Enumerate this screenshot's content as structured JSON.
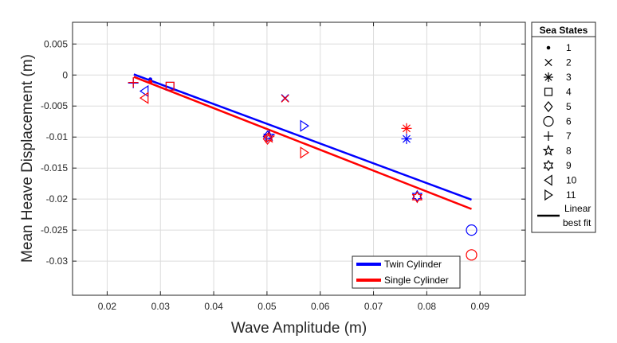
{
  "chart_data": {
    "type": "scatter",
    "xlabel": "Wave Amplitude (m)",
    "ylabel": "Mean Heave Displacement (m)",
    "xlim": [
      0.0135,
      0.0985
    ],
    "ylim": [
      -0.0355,
      0.0085
    ],
    "xticks": [
      0.02,
      0.03,
      0.04,
      0.05,
      0.06,
      0.07,
      0.08,
      0.09
    ],
    "xtick_labels": [
      "0.02",
      "0.03",
      "0.04",
      "0.05",
      "0.06",
      "0.07",
      "0.08",
      "0.09"
    ],
    "yticks": [
      0.005,
      0,
      -0.005,
      -0.01,
      -0.015,
      -0.02,
      -0.025,
      -0.03
    ],
    "ytick_labels": [
      "0.005",
      "0",
      "-0.005",
      "-0.01",
      "-0.015",
      "-0.02",
      "-0.025",
      "-0.03"
    ],
    "grid": true,
    "legend_position": "bottom-right",
    "series": [
      {
        "name": "Twin Cylinder",
        "color": "#0000ff",
        "points": [
          {
            "state": 1,
            "x": 0.0281,
            "y": -0.0007
          },
          {
            "state": 2,
            "x": 0.0534,
            "y": -0.0037
          },
          {
            "state": 3,
            "x": 0.0762,
            "y": -0.0103
          },
          {
            "state": 4,
            "x": 0.0318,
            "y": -0.0018
          },
          {
            "state": 5,
            "x": 0.0501,
            "y": -0.0099
          },
          {
            "state": 6,
            "x": 0.0884,
            "y": -0.025
          },
          {
            "state": 7,
            "x": 0.0249,
            "y": -0.0013
          },
          {
            "state": 8,
            "x": 0.0504,
            "y": -0.0098
          },
          {
            "state": 9,
            "x": 0.0782,
            "y": -0.0195
          },
          {
            "state": 10,
            "x": 0.027,
            "y": -0.0026
          },
          {
            "state": 11,
            "x": 0.057,
            "y": -0.0082
          }
        ],
        "fit": {
          "x": [
            0.025,
            0.0884
          ],
          "y": [
            0.0001,
            -0.0201
          ]
        }
      },
      {
        "name": "Single Cylinder",
        "color": "#ff0000",
        "points": [
          {
            "state": 1,
            "x": 0.0281,
            "y": -0.0011
          },
          {
            "state": 2,
            "x": 0.0534,
            "y": -0.0038
          },
          {
            "state": 3,
            "x": 0.0762,
            "y": -0.0086
          },
          {
            "state": 4,
            "x": 0.0318,
            "y": -0.0018
          },
          {
            "state": 5,
            "x": 0.0501,
            "y": -0.0103
          },
          {
            "state": 6,
            "x": 0.0884,
            "y": -0.029
          },
          {
            "state": 7,
            "x": 0.0249,
            "y": -0.0012
          },
          {
            "state": 8,
            "x": 0.0504,
            "y": -0.0101
          },
          {
            "state": 9,
            "x": 0.0782,
            "y": -0.0197
          },
          {
            "state": 10,
            "x": 0.027,
            "y": -0.0037
          },
          {
            "state": 11,
            "x": 0.057,
            "y": -0.0125
          }
        ],
        "fit": {
          "x": [
            0.025,
            0.0884
          ],
          "y": [
            -0.0003,
            -0.0216
          ]
        }
      }
    ],
    "fit_legend": {
      "items": [
        {
          "label": "Twin Cylinder",
          "color": "#0000ff"
        },
        {
          "label": "Single Cylinder",
          "color": "#ff0000"
        }
      ]
    },
    "marker_legend": {
      "title": "Sea States",
      "items": [
        {
          "label": "1",
          "marker": "dot"
        },
        {
          "label": "2",
          "marker": "x"
        },
        {
          "label": "3",
          "marker": "asterisk"
        },
        {
          "label": "4",
          "marker": "square"
        },
        {
          "label": "5",
          "marker": "diamond"
        },
        {
          "label": "6",
          "marker": "circle"
        },
        {
          "label": "7",
          "marker": "plus"
        },
        {
          "label": "8",
          "marker": "pentagram"
        },
        {
          "label": "9",
          "marker": "hexagram"
        },
        {
          "label": "10",
          "marker": "triangle-left"
        },
        {
          "label": "11",
          "marker": "triangle-right"
        }
      ],
      "fit_label_line1": "Linear",
      "fit_label_line2": "best fit"
    }
  }
}
